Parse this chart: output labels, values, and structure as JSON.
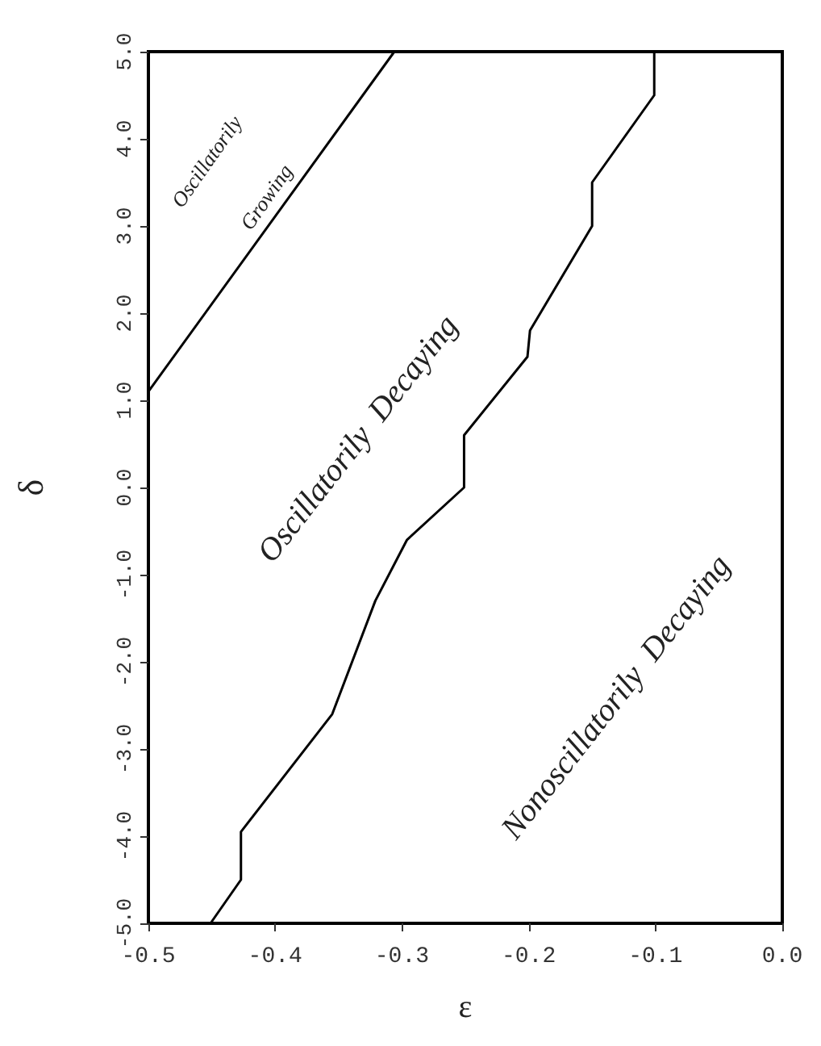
{
  "chart_data": {
    "type": "line",
    "xlabel": "ε",
    "ylabel": "δ",
    "xlim": [
      -0.5,
      0.0
    ],
    "xticks": [
      {
        "value": -0.5,
        "label": "-0.5"
      },
      {
        "value": -0.4,
        "label": "-0.4"
      },
      {
        "value": -0.3,
        "label": "-0.3"
      },
      {
        "value": -0.2,
        "label": "-0.2"
      },
      {
        "value": -0.1,
        "label": "-0.1"
      },
      {
        "value": 0,
        "label": "0.0"
      }
    ],
    "ylim": [
      -5.0,
      5.0
    ],
    "yticks": [
      {
        "value": -5,
        "label": "-5.0"
      },
      {
        "value": -4,
        "label": "-4.0"
      },
      {
        "value": -3,
        "label": "-3.0"
      },
      {
        "value": -2,
        "label": "-2.0"
      },
      {
        "value": -1,
        "label": "-1.0"
      },
      {
        "value": 0,
        "label": "0.0"
      },
      {
        "value": 1,
        "label": "1.0"
      },
      {
        "value": 2,
        "label": "2.0"
      },
      {
        "value": 3,
        "label": "3.0"
      },
      {
        "value": 4,
        "label": "4.0"
      },
      {
        "value": 5,
        "label": "5.0"
      }
    ],
    "series": [
      {
        "color": "#000000",
        "x": [
          -0.5,
          -0.306
        ],
        "values": [
          1.1,
          5.0
        ]
      },
      {
        "color": "#000000",
        "x": [
          -0.451,
          -0.427,
          -0.427,
          -0.355,
          -0.321,
          -0.296,
          -0.251,
          -0.251,
          -0.201,
          -0.199,
          -0.15,
          -0.15,
          -0.101,
          -0.101
        ],
        "values": [
          -5.0,
          -4.5,
          -3.95,
          -2.6,
          -1.3,
          -0.6,
          0.0,
          0.6,
          1.5,
          1.8,
          3.0,
          3.5,
          4.5,
          5.0
        ]
      }
    ],
    "annotations": [
      "Oscillatorily",
      "Growing",
      "Oscillatorily  Decaying",
      "Nonoscillatorily  Decaying"
    ],
    "marker": "none",
    "line_style": "solid",
    "grid": false
  }
}
